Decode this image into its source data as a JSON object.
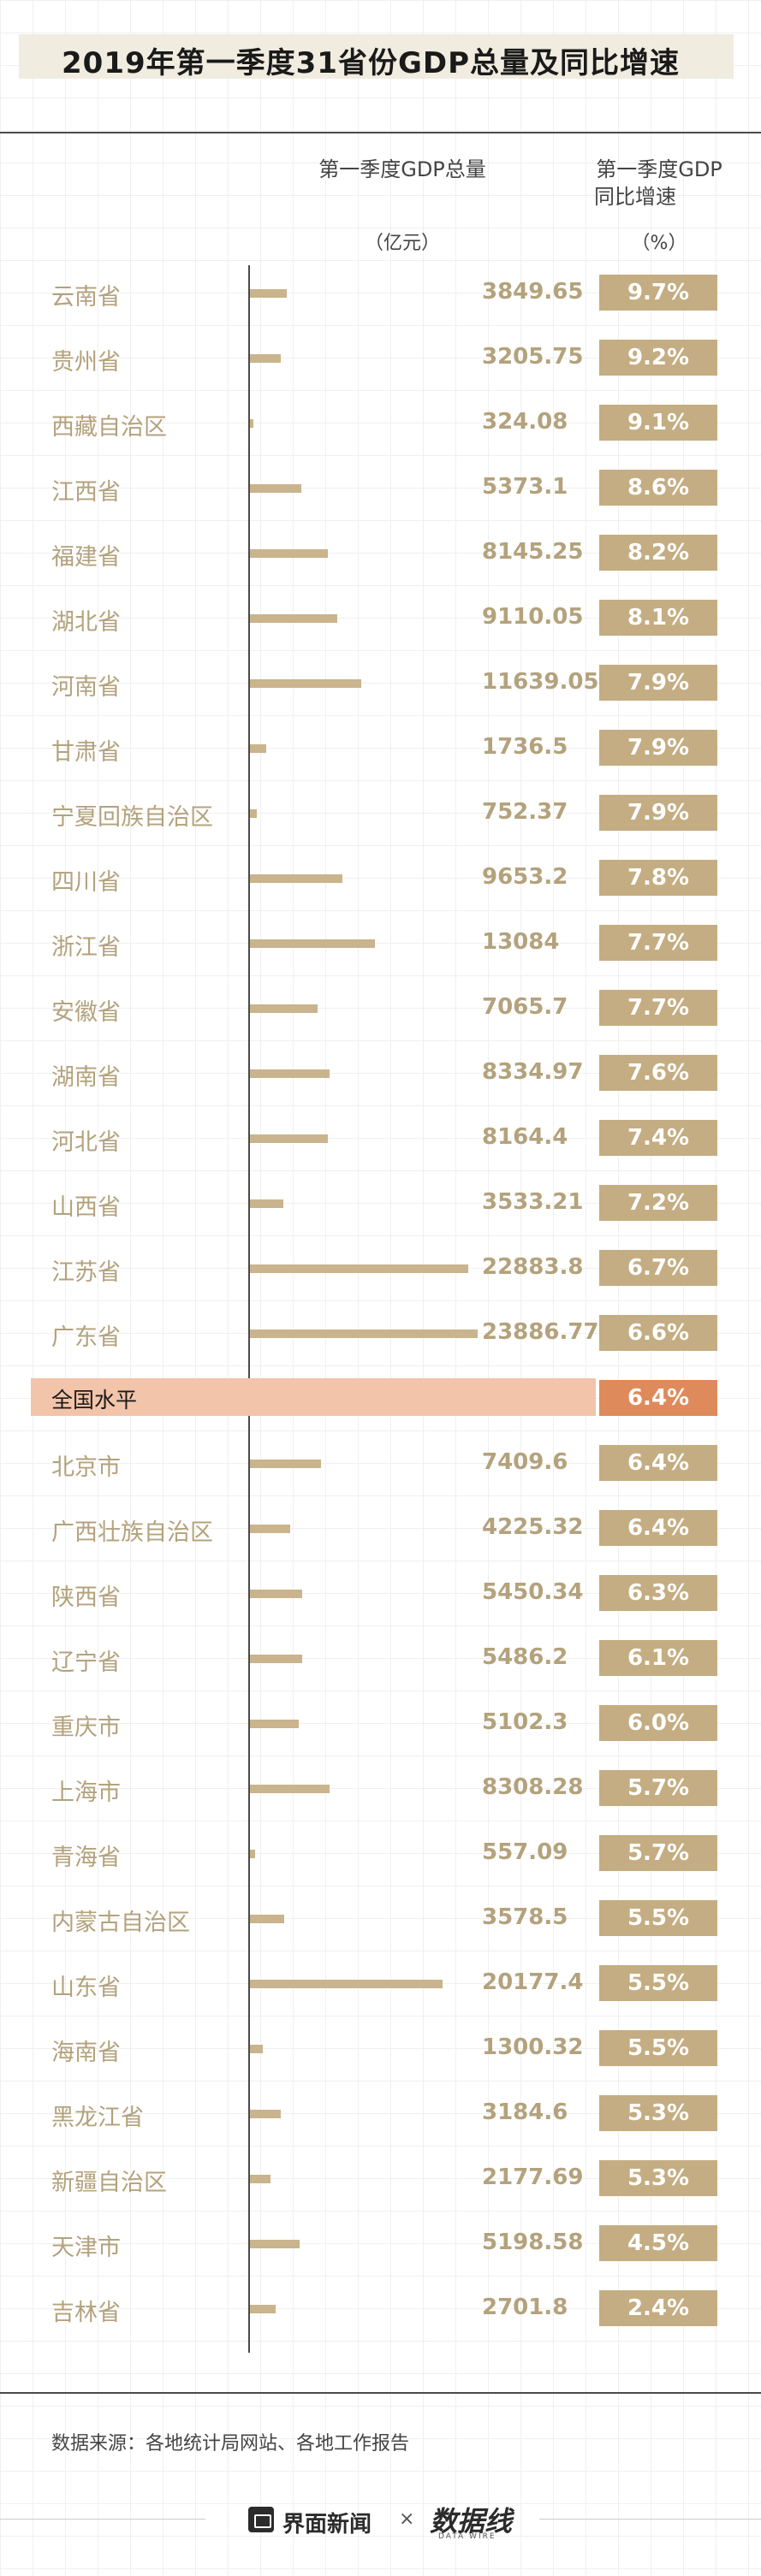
{
  "title": "2019年第一季度31省份GDP总量及同比增速",
  "headers": {
    "gdp": "第一季度GDP总量",
    "gdp_unit": "（亿元）",
    "rate_line1": "第一季度GDP",
    "rate_line2": "同比增速",
    "rate_unit": "（%）"
  },
  "source": "数据来源：各地统计局网站、各地工作报告",
  "footer": {
    "brand": "界面新闻",
    "separator": "×",
    "brand2": "数据线",
    "brand2_sub": "DATA WIRE"
  },
  "colors": {
    "accent": "#c4ad82",
    "bar": "#c9b48d",
    "label": "#b3a27c",
    "national_band": "#f2c4aa",
    "national_rate": "#df8a5b"
  },
  "chart_data": {
    "type": "bar",
    "orientation": "horizontal",
    "title": "2019年第一季度31省份GDP总量及同比增速",
    "value_label": "第一季度GDP总量",
    "value_unit": "（亿元）",
    "rate_label": "第一季度GDP同比增速",
    "rate_unit": "（%）",
    "xlim": [
      0,
      26000
    ],
    "rows": [
      {
        "region": "云南省",
        "gdp": "3849.65",
        "gdp_value": 3849.65,
        "rate": "9.7%"
      },
      {
        "region": "贵州省",
        "gdp": "3205.75",
        "gdp_value": 3205.75,
        "rate": "9.2%"
      },
      {
        "region": "西藏自治区",
        "gdp": "324.08",
        "gdp_value": 324.08,
        "rate": "9.1%"
      },
      {
        "region": "江西省",
        "gdp": "5373.1",
        "gdp_value": 5373.1,
        "rate": "8.6%"
      },
      {
        "region": "福建省",
        "gdp": "8145.25",
        "gdp_value": 8145.25,
        "rate": "8.2%"
      },
      {
        "region": "湖北省",
        "gdp": "9110.05",
        "gdp_value": 9110.05,
        "rate": "8.1%"
      },
      {
        "region": "河南省",
        "gdp": "11639.05",
        "gdp_value": 11639.05,
        "rate": "7.9%"
      },
      {
        "region": "甘肃省",
        "gdp": "1736.5",
        "gdp_value": 1736.5,
        "rate": "7.9%"
      },
      {
        "region": "宁夏回族自治区",
        "gdp": "752.37",
        "gdp_value": 752.37,
        "rate": "7.9%"
      },
      {
        "region": "四川省",
        "gdp": "9653.2",
        "gdp_value": 9653.2,
        "rate": "7.8%"
      },
      {
        "region": "浙江省",
        "gdp": "13084",
        "gdp_value": 13084,
        "rate": "7.7%"
      },
      {
        "region": "安徽省",
        "gdp": "7065.7",
        "gdp_value": 7065.7,
        "rate": "7.7%"
      },
      {
        "region": "湖南省",
        "gdp": "8334.97",
        "gdp_value": 8334.97,
        "rate": "7.6%"
      },
      {
        "region": "河北省",
        "gdp": "8164.4",
        "gdp_value": 8164.4,
        "rate": "7.4%"
      },
      {
        "region": "山西省",
        "gdp": "3533.21",
        "gdp_value": 3533.21,
        "rate": "7.2%"
      },
      {
        "region": "江苏省",
        "gdp": "22883.8",
        "gdp_value": 22883.8,
        "rate": "6.7%"
      },
      {
        "region": "广东省",
        "gdp": "23886.77",
        "gdp_value": 23886.77,
        "rate": "6.6%"
      },
      {
        "region": "全国水平",
        "gdp": "",
        "gdp_value": null,
        "rate": "6.4%",
        "national": true
      },
      {
        "region": "北京市",
        "gdp": "7409.6",
        "gdp_value": 7409.6,
        "rate": "6.4%"
      },
      {
        "region": "广西壮族自治区",
        "gdp": "4225.32",
        "gdp_value": 4225.32,
        "rate": "6.4%"
      },
      {
        "region": "陕西省",
        "gdp": "5450.34",
        "gdp_value": 5450.34,
        "rate": "6.3%"
      },
      {
        "region": "辽宁省",
        "gdp": "5486.2",
        "gdp_value": 5486.2,
        "rate": "6.1%"
      },
      {
        "region": "重庆市",
        "gdp": "5102.3",
        "gdp_value": 5102.3,
        "rate": "6.0%"
      },
      {
        "region": "上海市",
        "gdp": "8308.28",
        "gdp_value": 8308.28,
        "rate": "5.7%"
      },
      {
        "region": "青海省",
        "gdp": "557.09",
        "gdp_value": 557.09,
        "rate": "5.7%"
      },
      {
        "region": "内蒙古自治区",
        "gdp": "3578.5",
        "gdp_value": 3578.5,
        "rate": "5.5%"
      },
      {
        "region": "山东省",
        "gdp": "20177.4",
        "gdp_value": 20177.4,
        "rate": "5.5%"
      },
      {
        "region": "海南省",
        "gdp": "1300.32",
        "gdp_value": 1300.32,
        "rate": "5.5%"
      },
      {
        "region": "黑龙江省",
        "gdp": "3184.6",
        "gdp_value": 3184.6,
        "rate": "5.3%"
      },
      {
        "region": "新疆自治区",
        "gdp": "2177.69",
        "gdp_value": 2177.69,
        "rate": "5.3%"
      },
      {
        "region": "天津市",
        "gdp": "5198.58",
        "gdp_value": 5198.58,
        "rate": "4.5%"
      },
      {
        "region": "吉林省",
        "gdp": "2701.8",
        "gdp_value": 2701.8,
        "rate": "2.4%"
      }
    ]
  }
}
